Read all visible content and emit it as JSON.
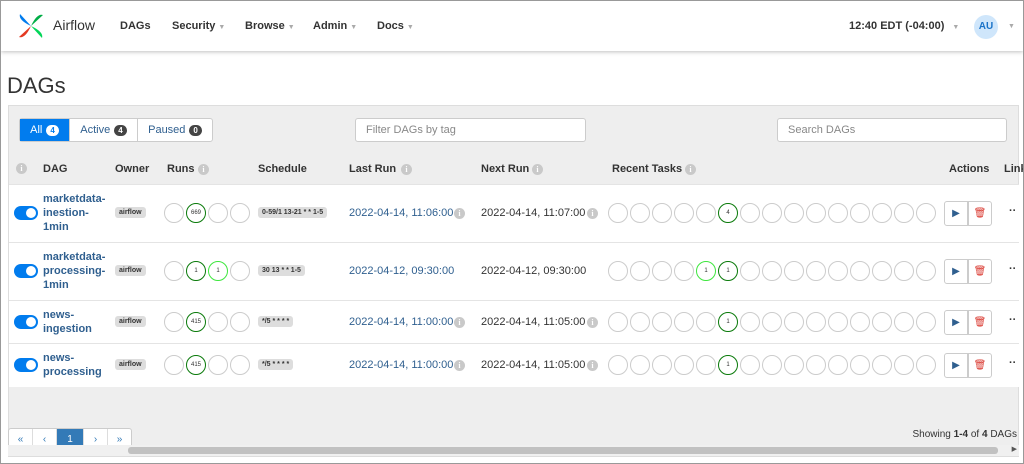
{
  "nav": {
    "brand": "Airflow",
    "menu": [
      "DAGs",
      "Security",
      "Browse",
      "Admin",
      "Docs"
    ],
    "time": "12:40 EDT (-04:00)",
    "user": "AU"
  },
  "page_title": "DAGs",
  "filters": [
    {
      "label": "All",
      "count": 4
    },
    {
      "label": "Active",
      "count": 4
    },
    {
      "label": "Paused",
      "count": 0
    }
  ],
  "tag_filter_placeholder": "Filter DAGs by tag",
  "search_placeholder": "Search DAGs",
  "table": {
    "headers": [
      "DAG",
      "Owner",
      "Runs",
      "Schedule",
      "Last Run",
      "Next Run",
      "Recent Tasks",
      "Actions",
      "Links"
    ],
    "rows": [
      {
        "dag": "marketdata-inestion-1min",
        "owner": "airflow",
        "runs": [
          null,
          {
            "count": 669,
            "color": "#0a7a0a"
          },
          null,
          null
        ],
        "schedule": "0-59/1 13-21 * * 1-5",
        "last_run": "2022-04-14, 11:06:00",
        "next_run": "2022-04-14, 11:07:00",
        "recent_tasks": [
          null,
          null,
          null,
          null,
          null,
          {
            "count": 4,
            "color": "#0a7a0a"
          },
          null,
          null,
          null,
          null,
          null,
          null,
          null,
          null,
          null
        ]
      },
      {
        "dag": "marketdata-processing-1min",
        "owner": "airflow",
        "runs": [
          null,
          {
            "count": 1,
            "color": "#0a7a0a"
          },
          {
            "count": 1,
            "color": "#3ee63e"
          },
          null
        ],
        "schedule": "30 13 * * 1-5",
        "last_run": "2022-04-12, 09:30:00",
        "next_run": "2022-04-12, 09:30:00",
        "recent_tasks": [
          null,
          null,
          null,
          null,
          {
            "count": 1,
            "color": "#3ee63e"
          },
          {
            "count": 1,
            "color": "#0a7a0a"
          },
          null,
          null,
          null,
          null,
          null,
          null,
          null,
          null,
          null
        ]
      },
      {
        "dag": "news-ingestion",
        "owner": "airflow",
        "runs": [
          null,
          {
            "count": 415,
            "color": "#0a7a0a"
          },
          null,
          null
        ],
        "schedule": "*/5 * * * *",
        "last_run": "2022-04-14, 11:00:00",
        "next_run": "2022-04-14, 11:05:00",
        "recent_tasks": [
          null,
          null,
          null,
          null,
          null,
          {
            "count": 1,
            "color": "#0a7a0a"
          },
          null,
          null,
          null,
          null,
          null,
          null,
          null,
          null,
          null
        ]
      },
      {
        "dag": "news-processing",
        "owner": "airflow",
        "runs": [
          null,
          {
            "count": 415,
            "color": "#0a7a0a"
          },
          null,
          null
        ],
        "schedule": "*/5 * * * *",
        "last_run": "2022-04-14, 11:00:00",
        "next_run": "2022-04-14, 11:05:00",
        "recent_tasks": [
          null,
          null,
          null,
          null,
          null,
          {
            "count": 1,
            "color": "#0a7a0a"
          },
          null,
          null,
          null,
          null,
          null,
          null,
          null,
          null,
          null
        ]
      }
    ]
  },
  "pagination": {
    "buttons": [
      "«",
      "‹",
      "1",
      "›",
      "»"
    ],
    "info": {
      "prefix": "Showing",
      "range": "1-4",
      "middle": "of",
      "total": 4,
      "suffix": "DAGs"
    }
  }
}
